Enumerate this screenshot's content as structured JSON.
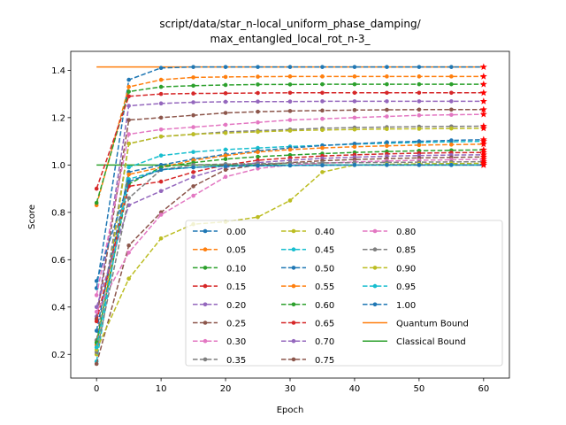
{
  "chart_data": {
    "type": "line",
    "title_lines": [
      "script/data/star_n-local_uniform_phase_damping/",
      "max_entangled_local_rot_n-3_"
    ],
    "xlabel": "Epoch",
    "ylabel": "Score",
    "xlim": [
      -4,
      64
    ],
    "ylim": [
      0.1,
      1.48
    ],
    "xticks": [
      0,
      10,
      20,
      30,
      40,
      50,
      60
    ],
    "yticks": [
      0.2,
      0.4,
      0.6,
      0.8,
      1.0,
      1.2,
      1.4
    ],
    "x": [
      0,
      5,
      10,
      15,
      20,
      25,
      30,
      35,
      40,
      45,
      50,
      55,
      60
    ],
    "legend_position": "lower-right",
    "series": [
      {
        "name": "0.00",
        "color": "#1f77b4",
        "values": [
          0.48,
          1.36,
          1.41,
          1.414,
          1.414,
          1.414,
          1.414,
          1.414,
          1.414,
          1.414,
          1.414,
          1.414,
          1.414
        ]
      },
      {
        "name": "0.05",
        "color": "#ff7f0e",
        "values": [
          0.83,
          1.33,
          1.36,
          1.37,
          1.372,
          1.373,
          1.374,
          1.374,
          1.374,
          1.374,
          1.374,
          1.374,
          1.374
        ]
      },
      {
        "name": "0.10",
        "color": "#2ca02c",
        "values": [
          0.84,
          1.31,
          1.33,
          1.335,
          1.338,
          1.34,
          1.34,
          1.341,
          1.341,
          1.341,
          1.341,
          1.341,
          1.341
        ]
      },
      {
        "name": "0.15",
        "color": "#d62728",
        "values": [
          0.9,
          1.29,
          1.3,
          1.302,
          1.303,
          1.304,
          1.305,
          1.305,
          1.305,
          1.305,
          1.305,
          1.305,
          1.305
        ]
      },
      {
        "name": "0.20",
        "color": "#9467bd",
        "values": [
          0.36,
          1.25,
          1.26,
          1.265,
          1.267,
          1.268,
          1.268,
          1.269,
          1.269,
          1.269,
          1.269,
          1.269,
          1.269
        ]
      },
      {
        "name": "0.25",
        "color": "#8c564b",
        "values": [
          0.35,
          1.19,
          1.2,
          1.21,
          1.22,
          1.225,
          1.228,
          1.23,
          1.232,
          1.233,
          1.234,
          1.234,
          1.234
        ]
      },
      {
        "name": "0.30",
        "color": "#e377c2",
        "values": [
          0.45,
          1.13,
          1.15,
          1.16,
          1.17,
          1.18,
          1.19,
          1.195,
          1.2,
          1.205,
          1.21,
          1.212,
          1.214
        ]
      },
      {
        "name": "0.35",
        "color": "#7f7f7f",
        "values": [
          0.26,
          1.09,
          1.12,
          1.13,
          1.14,
          1.145,
          1.15,
          1.155,
          1.158,
          1.16,
          1.162,
          1.163,
          1.164
        ]
      },
      {
        "name": "0.40",
        "color": "#bcbd22",
        "values": [
          0.2,
          1.09,
          1.12,
          1.13,
          1.135,
          1.14,
          1.145,
          1.148,
          1.15,
          1.152,
          1.153,
          1.154,
          1.155
        ]
      },
      {
        "name": "0.45",
        "color": "#17becf",
        "values": [
          0.17,
          0.99,
          1.04,
          1.055,
          1.065,
          1.072,
          1.078,
          1.083,
          1.088,
          1.092,
          1.095,
          1.098,
          1.1
        ]
      },
      {
        "name": "0.50",
        "color": "#1f77b4",
        "values": [
          0.3,
          0.97,
          1.0,
          1.025,
          1.045,
          1.06,
          1.072,
          1.082,
          1.09,
          1.096,
          1.1,
          1.104,
          1.107
        ]
      },
      {
        "name": "0.55",
        "color": "#ff7f0e",
        "values": [
          0.24,
          0.96,
          0.99,
          1.02,
          1.04,
          1.055,
          1.065,
          1.072,
          1.077,
          1.081,
          1.084,
          1.086,
          1.088
        ]
      },
      {
        "name": "0.60",
        "color": "#2ca02c",
        "values": [
          0.25,
          0.92,
          0.99,
          1.01,
          1.025,
          1.035,
          1.042,
          1.048,
          1.053,
          1.057,
          1.06,
          1.062,
          1.064
        ]
      },
      {
        "name": "0.65",
        "color": "#d62728",
        "values": [
          0.34,
          0.91,
          0.93,
          0.97,
          1.0,
          1.02,
          1.03,
          1.038,
          1.043,
          1.047,
          1.05,
          1.052,
          1.053
        ]
      },
      {
        "name": "0.70",
        "color": "#9467bd",
        "values": [
          0.4,
          0.83,
          0.89,
          0.95,
          0.99,
          1.01,
          1.02,
          1.028,
          1.033,
          1.037,
          1.04,
          1.042,
          1.043
        ]
      },
      {
        "name": "0.75",
        "color": "#8c564b",
        "values": [
          0.16,
          0.66,
          0.8,
          0.91,
          0.98,
          1.0,
          1.01,
          1.018,
          1.023,
          1.027,
          1.03,
          1.032,
          1.034
        ]
      },
      {
        "name": "0.80",
        "color": "#e377c2",
        "values": [
          0.38,
          0.63,
          0.79,
          0.87,
          0.95,
          0.985,
          1.0,
          1.008,
          1.013,
          1.017,
          1.02,
          1.022,
          1.024
        ]
      },
      {
        "name": "0.85",
        "color": "#7f7f7f",
        "values": [
          0.21,
          0.86,
          0.98,
          1.0,
          1.004,
          1.006,
          1.008,
          1.009,
          1.01,
          1.011,
          1.012,
          1.013,
          1.014
        ]
      },
      {
        "name": "0.90",
        "color": "#bcbd22",
        "values": [
          0.22,
          0.52,
          0.69,
          0.75,
          0.76,
          0.78,
          0.85,
          0.97,
          1.0,
          1.003,
          1.005,
          1.006,
          1.007
        ]
      },
      {
        "name": "0.95",
        "color": "#17becf",
        "values": [
          0.23,
          0.94,
          0.98,
          0.99,
          0.995,
          0.997,
          0.998,
          0.999,
          1.0,
          1.0,
          1.0,
          1.0,
          1.0
        ]
      },
      {
        "name": "1.00",
        "color": "#1f77b4",
        "values": [
          0.51,
          0.93,
          0.98,
          0.99,
          0.995,
          0.997,
          0.998,
          0.999,
          1.0,
          1.0,
          1.0,
          1.0,
          1.0
        ]
      }
    ],
    "bounds": [
      {
        "name": "Quantum Bound",
        "color": "#ff7f0e",
        "value": 1.414
      },
      {
        "name": "Classical Bound",
        "color": "#2ca02c",
        "value": 1.0
      }
    ],
    "final_marker_color": "#ff0000"
  }
}
